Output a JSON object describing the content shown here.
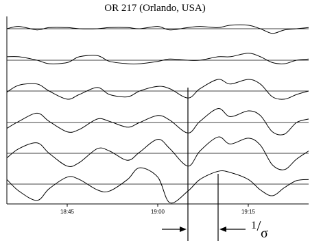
{
  "chart_data": {
    "type": "line",
    "title": "OR 217 (Orlando, USA)",
    "xlabel": "",
    "ylabel": "",
    "x_ticks": [
      "18:45",
      "19:00",
      "19:15"
    ],
    "x_range": [
      "18:35",
      "19:25"
    ],
    "grid": "horizontal baselines",
    "series_count": 6,
    "annotation": {
      "text_numerator": "1",
      "text_symbol": "σ",
      "marker_times": [
        "19:05",
        "19:10"
      ]
    },
    "series": [
      {
        "x": [
          "18:35",
          "18:37",
          "18:40",
          "18:42",
          "18:45",
          "18:47",
          "18:50",
          "18:52",
          "18:55",
          "18:57",
          "19:00",
          "19:02",
          "19:05",
          "19:07",
          "19:10",
          "19:12",
          "19:15",
          "19:17",
          "19:19",
          "19:21",
          "19:23",
          "19:25"
        ],
        "values": [
          0.0,
          0.2,
          -0.1,
          0.1,
          0.1,
          0.0,
          0.0,
          0.1,
          0.1,
          0.0,
          0.2,
          -0.1,
          0.1,
          0.2,
          0.1,
          0.3,
          0.3,
          0.0,
          -0.4,
          -0.1,
          0.0,
          0.1
        ]
      },
      {
        "x": [
          "18:35",
          "18:37",
          "18:40",
          "18:42",
          "18:45",
          "18:47",
          "18:50",
          "18:52",
          "18:55",
          "18:57",
          "19:00",
          "19:02",
          "19:05",
          "19:07",
          "19:10",
          "19:12",
          "19:15",
          "19:17",
          "19:19",
          "19:21",
          "19:23",
          "19:25"
        ],
        "values": [
          0.3,
          0.3,
          0.0,
          -0.3,
          -0.2,
          0.3,
          0.4,
          -0.1,
          -0.3,
          -0.3,
          -0.1,
          0.1,
          0.0,
          0.0,
          0.3,
          0.3,
          0.6,
          0.3,
          -0.2,
          -0.3,
          0.0,
          0.1
        ]
      },
      {
        "x": [
          "18:35",
          "18:37",
          "18:40",
          "18:42",
          "18:45",
          "18:47",
          "18:50",
          "18:52",
          "18:55",
          "18:57",
          "19:00",
          "19:02",
          "19:05",
          "19:07",
          "19:10",
          "19:12",
          "19:15",
          "19:17",
          "19:19",
          "19:21",
          "19:23",
          "19:25"
        ],
        "values": [
          -0.1,
          0.5,
          0.6,
          0.0,
          -0.7,
          -0.3,
          0.3,
          -0.3,
          -0.5,
          0.0,
          0.4,
          0.2,
          -0.6,
          0.2,
          1.0,
          0.6,
          1.0,
          0.6,
          -0.5,
          -0.7,
          -0.3,
          0.0
        ]
      },
      {
        "x": [
          "18:35",
          "18:37",
          "18:40",
          "18:42",
          "18:45",
          "18:47",
          "18:50",
          "18:52",
          "18:55",
          "18:57",
          "19:00",
          "19:02",
          "19:05",
          "19:07",
          "19:10",
          "19:12",
          "19:15",
          "19:17",
          "19:19",
          "19:21",
          "19:23",
          "19:25"
        ],
        "values": [
          -0.5,
          0.1,
          0.8,
          0.1,
          -0.8,
          -0.6,
          0.3,
          0.1,
          -0.4,
          0.0,
          0.6,
          0.2,
          -0.9,
          0.1,
          1.2,
          0.5,
          1.0,
          0.6,
          -0.8,
          -1.0,
          0.0,
          0.3
        ]
      },
      {
        "x": [
          "18:35",
          "18:37",
          "18:40",
          "18:42",
          "18:45",
          "18:47",
          "18:50",
          "18:52",
          "18:55",
          "18:57",
          "19:00",
          "19:02",
          "19:05",
          "19:07",
          "19:10",
          "19:12",
          "19:15",
          "19:17",
          "19:19",
          "19:21",
          "19:23",
          "19:25"
        ],
        "values": [
          -0.4,
          0.4,
          0.9,
          0.0,
          -1.1,
          -0.8,
          0.4,
          0.2,
          -0.6,
          0.1,
          1.2,
          0.4,
          -1.1,
          0.2,
          1.4,
          0.8,
          1.3,
          0.7,
          -1.0,
          -1.4,
          -0.5,
          0.2
        ]
      },
      {
        "x": [
          "18:35",
          "18:37",
          "18:40",
          "18:42",
          "18:45",
          "18:47",
          "18:50",
          "18:52",
          "18:55",
          "18:57",
          "19:00",
          "19:02",
          "19:05",
          "19:07",
          "19:10",
          "19:12",
          "19:15",
          "19:17",
          "19:19",
          "19:21",
          "19:23",
          "19:25"
        ],
        "values": [
          0.4,
          -0.6,
          -1.4,
          -0.4,
          0.6,
          0.4,
          -0.5,
          -0.6,
          0.4,
          1.4,
          0.6,
          -1.6,
          -0.6,
          0.4,
          1.1,
          1.0,
          0.4,
          -0.5,
          -1.0,
          -0.3,
          0.3,
          0.4
        ]
      }
    ]
  }
}
